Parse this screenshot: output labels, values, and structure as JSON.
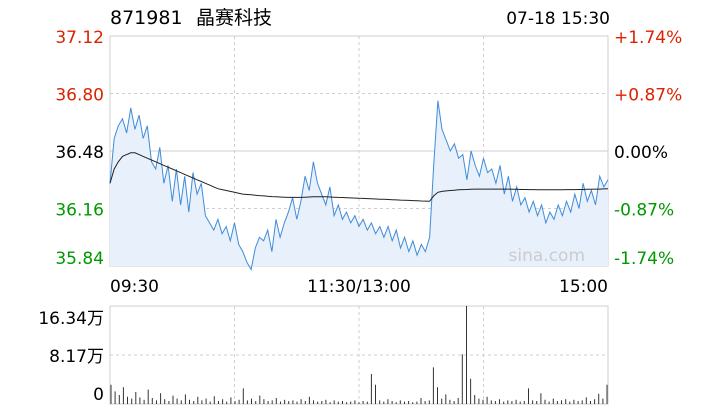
{
  "header": {
    "code": "871981",
    "name": "晶赛科技",
    "datetime": "07-18 15:30"
  },
  "watermark": "sina.com",
  "colors": {
    "up": "#dd2200",
    "down": "#009900",
    "flat": "#000000",
    "price_line": "#3f8cd9",
    "price_fill": "#e7f0fb",
    "avg_line": "#222222",
    "grid": "#cfcfcf",
    "volume_bar": "#333333"
  },
  "chart_data": [
    {
      "type": "line",
      "y_ticks_left": [
        {
          "label": "37.12",
          "value": 37.12,
          "trend": "up"
        },
        {
          "label": "36.80",
          "value": 36.8,
          "trend": "up"
        },
        {
          "label": "36.48",
          "value": 36.48,
          "trend": "flat"
        },
        {
          "label": "36.16",
          "value": 36.16,
          "trend": "down"
        },
        {
          "label": "35.84",
          "value": 35.84,
          "trend": "down"
        }
      ],
      "y_ticks_right": [
        {
          "label": "+1.74%",
          "trend": "up"
        },
        {
          "label": "+0.87%",
          "trend": "up"
        },
        {
          "label": "0.00%",
          "trend": "flat"
        },
        {
          "label": "-0.87%",
          "trend": "down"
        },
        {
          "label": "-1.74%",
          "trend": "down"
        }
      ],
      "x_ticks": [
        "09:30",
        "11:30/13:00",
        "15:00"
      ],
      "ylim": [
        35.84,
        37.12
      ],
      "prev_close": 36.48,
      "series": [
        {
          "role": "price",
          "values": [
            36.3,
            36.55,
            36.62,
            36.66,
            36.58,
            36.72,
            36.6,
            36.68,
            36.55,
            36.62,
            36.42,
            36.38,
            36.5,
            36.3,
            36.4,
            36.2,
            36.38,
            36.18,
            36.34,
            36.14,
            36.36,
            36.24,
            36.3,
            36.12,
            36.08,
            36.04,
            36.1,
            36.02,
            36.06,
            35.98,
            36.08,
            35.96,
            35.92,
            35.86,
            35.82,
            35.94,
            36.0,
            35.98,
            36.04,
            35.92,
            36.1,
            36.0,
            36.08,
            36.14,
            36.22,
            36.1,
            36.2,
            36.34,
            36.26,
            36.42,
            36.3,
            36.24,
            36.18,
            36.28,
            36.12,
            36.18,
            36.1,
            36.14,
            36.08,
            36.12,
            36.06,
            36.1,
            36.04,
            36.08,
            36.02,
            36.06,
            36.0,
            36.06,
            35.98,
            36.04,
            35.94,
            36.0,
            35.92,
            35.98,
            35.9,
            35.96,
            35.92,
            36.0,
            36.4,
            36.76,
            36.6,
            36.54,
            36.48,
            36.52,
            36.44,
            36.46,
            36.32,
            36.48,
            36.4,
            36.34,
            36.44,
            36.36,
            36.38,
            36.3,
            36.4,
            36.24,
            36.34,
            36.2,
            36.28,
            36.18,
            36.22,
            36.14,
            36.2,
            36.12,
            36.18,
            36.08,
            36.14,
            36.1,
            36.18,
            36.12,
            36.2,
            36.14,
            36.24,
            36.16,
            36.3,
            36.2,
            36.26,
            36.18,
            36.34,
            36.28,
            36.32
          ],
          "name": ""
        },
        {
          "role": "average",
          "values": [
            36.3,
            36.38,
            36.42,
            36.45,
            36.46,
            36.47,
            36.47,
            36.46,
            36.45,
            36.44,
            36.43,
            36.42,
            36.41,
            36.4,
            36.39,
            36.38,
            36.37,
            36.36,
            36.35,
            36.34,
            36.33,
            36.32,
            36.31,
            36.3,
            36.29,
            36.28,
            36.27,
            36.265,
            36.26,
            36.255,
            36.25,
            36.245,
            36.24,
            36.238,
            36.236,
            36.234,
            36.232,
            36.23,
            36.228,
            36.226,
            36.225,
            36.224,
            36.223,
            36.222,
            36.222,
            36.222,
            36.222,
            36.223,
            36.224,
            36.225,
            36.225,
            36.225,
            36.225,
            36.224,
            36.223,
            36.222,
            36.221,
            36.22,
            36.219,
            36.218,
            36.217,
            36.216,
            36.215,
            36.214,
            36.213,
            36.212,
            36.211,
            36.21,
            36.209,
            36.208,
            36.207,
            36.206,
            36.205,
            36.204,
            36.203,
            36.202,
            36.201,
            36.2,
            36.23,
            36.25,
            36.255,
            36.258,
            36.26,
            36.262,
            36.264,
            36.265,
            36.266,
            36.267,
            36.268,
            36.268,
            36.268,
            36.268,
            36.268,
            36.268,
            36.268,
            36.268,
            36.268,
            36.267,
            36.267,
            36.266,
            36.266,
            36.265,
            36.265,
            36.264,
            36.264,
            36.264,
            36.264,
            36.264,
            36.264,
            36.264,
            36.265,
            36.265,
            36.265,
            36.266,
            36.266,
            36.267,
            36.267,
            36.268,
            36.268,
            36.269,
            36.27
          ],
          "name": ""
        }
      ]
    },
    {
      "type": "bar",
      "y_ticks": [
        {
          "label": "16.34万",
          "value": 16.34
        },
        {
          "label": "8.17万",
          "value": 8.17
        },
        {
          "label": "0",
          "value": 0
        }
      ],
      "ylim": [
        0,
        16.34
      ],
      "unit": "万",
      "values": [
        3.2,
        2.1,
        1.5,
        2.8,
        1.2,
        0.9,
        2.0,
        1.1,
        0.7,
        2.4,
        1.0,
        0.6,
        1.8,
        0.8,
        0.5,
        1.4,
        0.9,
        0.6,
        1.6,
        0.7,
        0.5,
        1.2,
        0.6,
        0.9,
        0.4,
        1.3,
        0.5,
        0.8,
        0.4,
        1.1,
        0.5,
        0.7,
        2.6,
        0.6,
        0.9,
        0.5,
        1.4,
        0.8,
        0.5,
        0.6,
        1.0,
        0.4,
        0.7,
        0.5,
        0.6,
        0.4,
        0.8,
        0.5,
        1.2,
        0.6,
        0.4,
        0.5,
        0.7,
        0.3,
        0.6,
        0.4,
        0.5,
        0.3,
        0.4,
        0.6,
        0.3,
        0.5,
        0.4,
        5.0,
        3.2,
        0.6,
        0.4,
        0.8,
        0.5,
        0.3,
        0.6,
        0.4,
        0.5,
        0.3,
        0.4,
        1.0,
        0.5,
        0.6,
        6.1,
        2.8,
        0.9,
        1.6,
        0.7,
        0.5,
        1.0,
        8.3,
        16.34,
        4.2,
        1.5,
        0.9,
        0.7,
        1.2,
        0.6,
        0.5,
        0.8,
        0.4,
        0.6,
        0.5,
        0.7,
        0.4,
        0.5,
        2.6,
        0.6,
        0.5,
        1.8,
        0.7,
        0.4,
        0.9,
        0.5,
        0.6,
        0.8,
        0.4,
        0.7,
        0.5,
        0.6,
        1.1,
        0.5,
        0.8,
        1.7,
        0.9,
        3.2
      ]
    }
  ]
}
